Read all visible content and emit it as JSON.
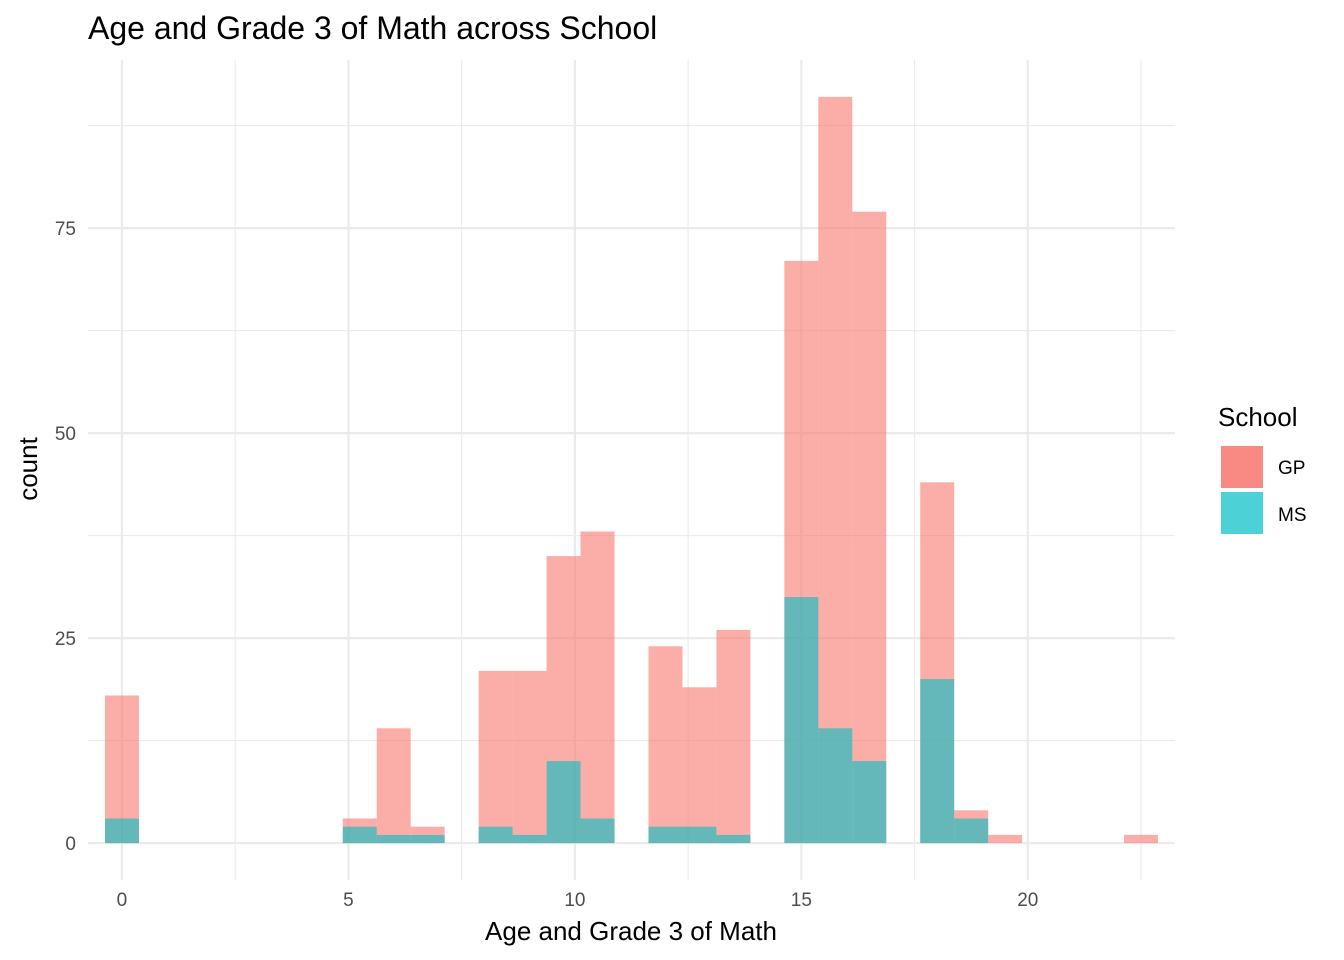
{
  "chart_data": {
    "type": "bar",
    "title": "Age and Grade 3 of Math across School",
    "xlabel": "Age and Grade 3 of Math",
    "ylabel": "count",
    "xlim": [
      -0.75,
      23.25
    ],
    "ylim": [
      -4.5,
      95.5
    ],
    "x_ticks": [
      0,
      5,
      10,
      15,
      20
    ],
    "y_ticks": [
      0,
      25,
      50,
      75
    ],
    "bin_width": 0.75,
    "grid": true,
    "legend": {
      "title": "School",
      "position": "right"
    },
    "colors": {
      "GP": "#F8766D",
      "MS": "#00BFC4",
      "grid": "#EBEBEB"
    },
    "series": [
      {
        "name": "GP",
        "bins": [
          [
            0,
            18
          ],
          [
            5.25,
            3
          ],
          [
            6,
            14
          ],
          [
            6.75,
            2
          ],
          [
            8.25,
            21
          ],
          [
            9,
            21
          ],
          [
            9.75,
            35
          ],
          [
            10.5,
            38
          ],
          [
            12,
            24
          ],
          [
            12.75,
            19
          ],
          [
            13.5,
            26
          ],
          [
            15,
            71
          ],
          [
            15.75,
            91
          ],
          [
            16.5,
            77
          ],
          [
            18,
            44
          ],
          [
            18.75,
            4
          ],
          [
            19.5,
            1
          ],
          [
            22.5,
            1
          ]
        ]
      },
      {
        "name": "MS",
        "bins": [
          [
            0,
            3
          ],
          [
            5.25,
            2
          ],
          [
            6,
            1
          ],
          [
            6.75,
            1
          ],
          [
            8.25,
            2
          ],
          [
            9,
            1
          ],
          [
            9.75,
            10
          ],
          [
            10.5,
            3
          ],
          [
            12,
            2
          ],
          [
            12.75,
            2
          ],
          [
            13.5,
            1
          ],
          [
            15,
            30
          ],
          [
            15.75,
            14
          ],
          [
            16.5,
            10
          ],
          [
            18,
            20
          ],
          [
            18.75,
            3
          ],
          [
            19.5,
            0
          ]
        ]
      }
    ]
  }
}
